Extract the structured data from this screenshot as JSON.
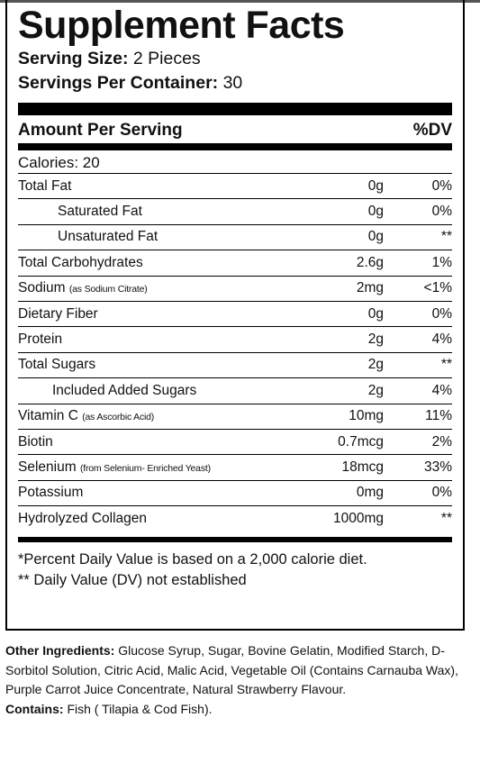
{
  "title": "Supplement Facts",
  "serving_size_label": "Serving Size:",
  "serving_size_value": "2 Pieces",
  "servings_label": "Servings Per Container:",
  "servings_value": "30",
  "amount_per_serving": "Amount Per Serving",
  "dv_header": "%DV",
  "calories": "Calories: 20",
  "nutrients": [
    {
      "name": "Total Fat",
      "sub": "",
      "amount": "0g",
      "dv": "0%"
    },
    {
      "name": "Saturated Fat",
      "sub": "",
      "amount": "0g",
      "dv": "0%"
    },
    {
      "name": "Unsaturated Fat",
      "sub": "",
      "amount": "0g",
      "dv": "**"
    },
    {
      "name": "Total Carbohydrates",
      "sub": "",
      "amount": "2.6g",
      "dv": "1%"
    },
    {
      "name": "Sodium",
      "sub": "(as Sodium Citrate)",
      "amount": "2mg",
      "dv": "<1%"
    },
    {
      "name": "Dietary Fiber",
      "sub": "",
      "amount": "0g",
      "dv": "0%"
    },
    {
      "name": "Protein",
      "sub": "",
      "amount": "2g",
      "dv": "4%"
    },
    {
      "name": "Total Sugars",
      "sub": "",
      "amount": "2g",
      "dv": "**"
    },
    {
      "name": "Included Added Sugars",
      "sub": "",
      "amount": "2g",
      "dv": "4%"
    },
    {
      "name": "Vitamin C",
      "sub": "(as Ascorbic Acid)",
      "amount": "10mg",
      "dv": "11%"
    },
    {
      "name": "Biotin",
      "sub": "",
      "amount": "0.7mcg",
      "dv": "2%"
    },
    {
      "name": "Selenium",
      "sub": "(from Selenium- Enriched Yeast)",
      "amount": "18mcg",
      "dv": "33%"
    },
    {
      "name": "Potassium",
      "sub": "",
      "amount": "0mg",
      "dv": "0%"
    },
    {
      "name": "Hydrolyzed Collagen",
      "sub": "",
      "amount": "1000mg",
      "dv": "**"
    }
  ],
  "footnote1": "*Percent Daily Value is based on a 2,000 calorie diet.",
  "footnote2": "** Daily Value (DV) not established",
  "other_ingredients_label": "Other Ingredients:",
  "other_ingredients": "Glucose Syrup, Sugar, Bovine Gelatin, Modified Starch, D-Sorbitol Solution, Citric Acid, Malic Acid, Vegetable Oil (Contains Carnauba Wax), Purple Carrot Juice Concentrate, Natural Strawberry Flavour.",
  "contains_label": "Contains:",
  "contains": "Fish ( Tilapia & Cod Fish)."
}
